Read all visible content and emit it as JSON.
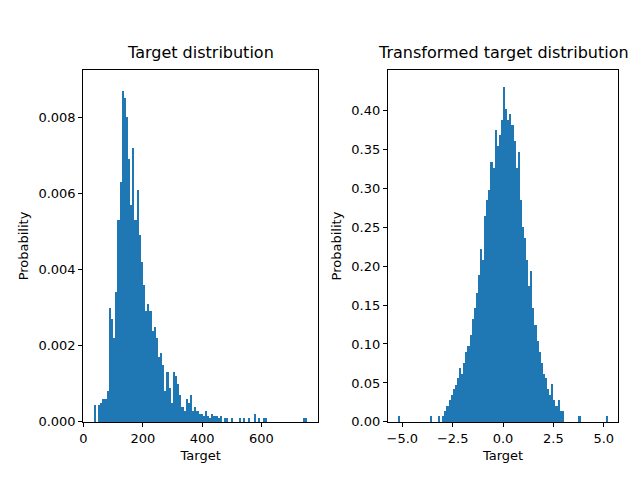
{
  "chart_data": [
    {
      "type": "histogram",
      "title": "Target distribution",
      "x_label": "Target",
      "y_label": "Probability",
      "color": "#1f77b4",
      "grid": false,
      "bins": [
        35,
        42.2,
        49.4,
        56.6,
        63.8,
        71,
        78.2,
        85.4,
        92.6,
        99.8,
        107,
        114.2,
        121.4,
        128.6,
        135.8,
        143,
        150.2,
        157.4,
        164.6,
        171.8,
        179,
        186.2,
        193.4,
        200.6,
        207.8,
        215,
        222.2,
        229.4,
        236.6,
        243.8,
        251,
        258.2,
        265.4,
        272.6,
        279.8,
        287,
        294.2,
        301.4,
        308.6,
        315.8,
        323,
        330.2,
        337.4,
        344.6,
        351.8,
        359,
        366.2,
        373.4,
        380.6,
        387.8,
        395,
        402.2,
        409.4,
        416.6,
        423.8,
        431,
        438.2,
        445.4,
        452.6,
        459.8,
        467,
        474.2,
        481.4,
        488.6,
        495.8,
        503,
        510.2,
        517.4,
        524.6,
        531.8,
        539,
        546.2,
        553.4,
        560.6,
        567.8,
        575,
        582.2,
        589.4,
        596.6,
        603.8,
        611,
        618.2,
        625.4,
        632.6,
        639.8,
        647,
        654.2,
        661.4,
        668.6,
        675.8,
        683,
        690.2,
        697.4,
        704.6,
        711.8,
        719,
        726.2,
        733.4,
        740.6,
        747.8,
        755
      ],
      "values": [
        0.00045,
        0,
        0.00045,
        0.0005,
        0.0006,
        0.0006,
        0.0008,
        0.003,
        0.0027,
        0.0022,
        0.0034,
        0.0053,
        0.0063,
        0.0087,
        0.0085,
        0.008,
        0.0069,
        0.0057,
        0.0072,
        0.0053,
        0.0061,
        0.0049,
        0.0042,
        0.0036,
        0.0029,
        0.0031,
        0.0029,
        0.0024,
        0.0025,
        0.0022,
        0.0017,
        0.0018,
        0.0015,
        0.0008,
        0.0013,
        0.0009,
        0.0005,
        0.0013,
        0.0012,
        0.001,
        0.0007,
        0.0004,
        0.0003,
        0.0006,
        0.0005,
        0.0007,
        0.0003,
        0.0004,
        0.0003,
        0.0002,
        0.0002,
        0.00015,
        0.0003,
        0.00015,
        0.0001,
        0.0002,
        0.00015,
        0.00015,
        0.0001,
        0.00015,
        0,
        0.0001,
        0.0001,
        0,
        0.0001,
        0,
        0,
        0,
        0.0001,
        0,
        0.0001,
        0,
        0.0001,
        0,
        0,
        0.0002,
        0,
        0.0001,
        0,
        0.0001,
        0.0001,
        0,
        0,
        0,
        0,
        0,
        0,
        0,
        0,
        0,
        0,
        0,
        0,
        0,
        0,
        0,
        0,
        0,
        0.0001,
        0.0001
      ],
      "xlim": [
        -1,
        791
      ],
      "xticks": [
        0,
        200,
        400,
        600
      ],
      "ylim": [
        0,
        0.00924
      ],
      "yticks": [
        {
          "value": 0,
          "label": "0.000"
        },
        {
          "value": 0.002,
          "label": "0.002"
        },
        {
          "value": 0.004,
          "label": "0.004"
        },
        {
          "value": 0.006,
          "label": "0.006"
        },
        {
          "value": 0.008,
          "label": "0.008"
        }
      ]
    },
    {
      "type": "histogram",
      "title": "Transformed target distribution",
      "x_label": "Target",
      "y_label": "Probability",
      "color": "#1f77b4",
      "grid": false,
      "bins": [
        -5.2,
        -5.096,
        -4.992,
        -4.888,
        -4.784,
        -4.68,
        -4.576,
        -4.472,
        -4.368,
        -4.264,
        -4.16,
        -4.056,
        -3.952,
        -3.848,
        -3.744,
        -3.64,
        -3.536,
        -3.432,
        -3.328,
        -3.224,
        -3.12,
        -3.016,
        -2.912,
        -2.808,
        -2.704,
        -2.6,
        -2.496,
        -2.392,
        -2.288,
        -2.184,
        -2.08,
        -1.976,
        -1.872,
        -1.768,
        -1.664,
        -1.56,
        -1.456,
        -1.352,
        -1.248,
        -1.144,
        -1.04,
        -0.936,
        -0.832,
        -0.728,
        -0.624,
        -0.52,
        -0.416,
        -0.312,
        -0.208,
        -0.104,
        0,
        0.104,
        0.208,
        0.312,
        0.416,
        0.52,
        0.624,
        0.728,
        0.832,
        0.936,
        1.04,
        1.144,
        1.248,
        1.352,
        1.456,
        1.56,
        1.664,
        1.768,
        1.872,
        1.976,
        2.08,
        2.184,
        2.288,
        2.392,
        2.496,
        2.6,
        2.704,
        2.808,
        2.912,
        3.016,
        3.12,
        3.224,
        3.328,
        3.432,
        3.536,
        3.64,
        3.744,
        3.848,
        3.952,
        4.056,
        4.16,
        4.264,
        4.368,
        4.472,
        4.576,
        4.68,
        4.784,
        4.888,
        4.992,
        5.096,
        5.2
      ],
      "values": [
        0.007,
        0,
        0,
        0,
        0,
        0,
        0,
        0,
        0,
        0,
        0,
        0,
        0,
        0,
        0,
        0.007,
        0,
        0,
        0,
        0.007,
        0,
        0.007,
        0.014,
        0.021,
        0.028,
        0.035,
        0.042,
        0.048,
        0.056,
        0.069,
        0.062,
        0.076,
        0.09,
        0.097,
        0.111,
        0.132,
        0.146,
        0.166,
        0.188,
        0.222,
        0.208,
        0.264,
        0.285,
        0.298,
        0.333,
        0.326,
        0.374,
        0.354,
        0.368,
        0.388,
        0.43,
        0.402,
        0.388,
        0.395,
        0.381,
        0.36,
        0.326,
        0.347,
        0.285,
        0.25,
        0.236,
        0.208,
        0.174,
        0.194,
        0.146,
        0.125,
        0.104,
        0.09,
        0.076,
        0.062,
        0.056,
        0.042,
        0.035,
        0.049,
        0.028,
        0.021,
        0.028,
        0.014,
        0.014,
        0,
        0,
        0,
        0,
        0,
        0,
        0,
        0.007,
        0,
        0,
        0,
        0,
        0,
        0,
        0,
        0,
        0,
        0,
        0,
        0,
        0.007
      ],
      "xlim": [
        -5.72,
        5.72
      ],
      "xticks": [
        {
          "value": -5,
          "label": "−5.0"
        },
        {
          "value": -2.5,
          "label": "−2.5"
        },
        {
          "value": 0,
          "label": "0.0"
        },
        2.5,
        {
          "value": 5,
          "label": "5.0"
        }
      ],
      "ylim": [
        0,
        0.4515
      ],
      "yticks": [
        {
          "value": 0,
          "label": "0.00"
        },
        0.05,
        {
          "value": 0.1,
          "label": "0.10"
        },
        0.15,
        {
          "value": 0.2,
          "label": "0.20"
        },
        0.25,
        {
          "value": 0.3,
          "label": "0.30"
        },
        0.35,
        {
          "value": 0.4,
          "label": "0.40"
        }
      ]
    }
  ]
}
